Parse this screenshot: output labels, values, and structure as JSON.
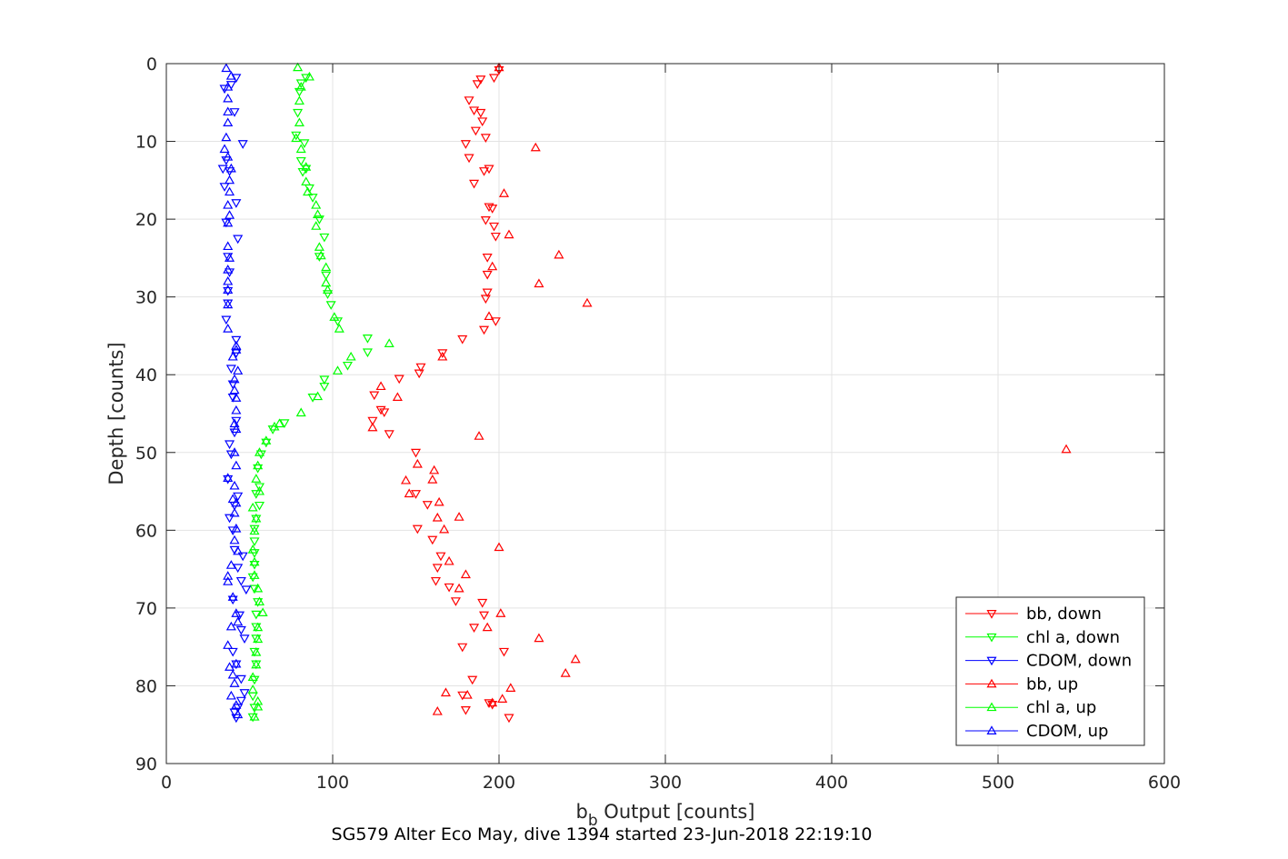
{
  "chart_data": {
    "type": "scatter",
    "title": "",
    "caption": "SG579 Alter Eco May, dive 1394 started 23-Jun-2018 22:19:10",
    "xlabel": {
      "base": "b",
      "sub": "b",
      "rest": " Output [counts]"
    },
    "ylabel": "Depth [counts]",
    "xlim": [
      0,
      600
    ],
    "ylim": [
      0,
      90
    ],
    "y_reversed": true,
    "grid": true,
    "xticks": [
      0,
      100,
      200,
      300,
      400,
      500,
      600
    ],
    "yticks": [
      0,
      10,
      20,
      30,
      40,
      50,
      60,
      70,
      80,
      90
    ],
    "legend_position": "bottom-right",
    "series": [
      {
        "name": "bb, down",
        "color": "#ff0000",
        "marker": "triangle-down",
        "points": [
          [
            200,
            0.8
          ],
          [
            197,
            1.8
          ],
          [
            189,
            2
          ],
          [
            187,
            2.6
          ],
          [
            182,
            4.7
          ],
          [
            185,
            6
          ],
          [
            189,
            6.3
          ],
          [
            190,
            7.4
          ],
          [
            186,
            8.6
          ],
          [
            192,
            9.5
          ],
          [
            180,
            10.3
          ],
          [
            182,
            12.1
          ],
          [
            194,
            13.5
          ],
          [
            191,
            13.8
          ],
          [
            185,
            15.4
          ],
          [
            194,
            18.4
          ],
          [
            196,
            18.6
          ],
          [
            192,
            20.1
          ],
          [
            197,
            20.9
          ],
          [
            198,
            22.2
          ],
          [
            193,
            24.9
          ],
          [
            193,
            27.1
          ],
          [
            193,
            29.4
          ],
          [
            192,
            30.2
          ],
          [
            198,
            33.1
          ],
          [
            191,
            34.2
          ],
          [
            178,
            35.4
          ],
          [
            166,
            37.2
          ],
          [
            153,
            39
          ],
          [
            152,
            39.8
          ],
          [
            140,
            40.5
          ],
          [
            125,
            42.6
          ],
          [
            129,
            44.5
          ],
          [
            131,
            44.8
          ],
          [
            124,
            45.9
          ],
          [
            134,
            47.6
          ],
          [
            150,
            50
          ],
          [
            150,
            55.3
          ],
          [
            157,
            56.7
          ],
          [
            151,
            59.8
          ],
          [
            160,
            61.2
          ],
          [
            165,
            63.3
          ],
          [
            163,
            64.8
          ],
          [
            162,
            66.5
          ],
          [
            170,
            67.3
          ],
          [
            174,
            69.1
          ],
          [
            190,
            69.3
          ],
          [
            191,
            70.9
          ],
          [
            185,
            72.5
          ],
          [
            203,
            75.6
          ],
          [
            178,
            75
          ],
          [
            184,
            79.2
          ],
          [
            178,
            81.2
          ],
          [
            180,
            83.1
          ],
          [
            194,
            82.2
          ],
          [
            196,
            82.4
          ],
          [
            206,
            84.1
          ]
        ]
      },
      {
        "name": "chl a, down",
        "color": "#00ff00",
        "marker": "triangle-down",
        "points": [
          [
            84,
            1.8
          ],
          [
            81,
            2.5
          ],
          [
            80,
            3.6
          ],
          [
            79,
            6.3
          ],
          [
            78,
            9.2
          ],
          [
            83,
            10.2
          ],
          [
            81,
            12.5
          ],
          [
            84,
            13.5
          ],
          [
            82,
            13.9
          ],
          [
            86,
            16
          ],
          [
            88,
            17.2
          ],
          [
            92,
            20
          ],
          [
            95,
            22.3
          ],
          [
            92,
            24.8
          ],
          [
            96,
            27.2
          ],
          [
            97,
            29.6
          ],
          [
            99,
            31
          ],
          [
            103,
            33.1
          ],
          [
            121,
            35.3
          ],
          [
            121,
            37.1
          ],
          [
            109,
            38.8
          ],
          [
            95,
            40.6
          ],
          [
            95,
            41.5
          ],
          [
            88,
            42.9
          ],
          [
            71,
            46.2
          ],
          [
            64,
            47
          ],
          [
            60,
            48.7
          ],
          [
            57,
            50.2
          ],
          [
            55,
            52
          ],
          [
            56,
            54.4
          ],
          [
            54,
            55.3
          ],
          [
            56,
            56.8
          ],
          [
            54,
            58.5
          ],
          [
            53,
            59.8
          ],
          [
            53,
            61.4
          ],
          [
            53,
            62.9
          ],
          [
            53,
            64.4
          ],
          [
            52,
            66
          ],
          [
            53,
            67.5
          ],
          [
            55,
            69.2
          ],
          [
            54,
            70.8
          ],
          [
            54,
            72.4
          ],
          [
            54,
            73.9
          ],
          [
            53,
            75.6
          ],
          [
            54,
            77.2
          ],
          [
            53,
            79.2
          ],
          [
            52,
            81.3
          ],
          [
            53,
            82.8
          ],
          [
            52,
            84
          ]
        ]
      },
      {
        "name": "CDOM, down",
        "color": "#0000ff",
        "marker": "triangle-down",
        "points": [
          [
            42,
            1.8
          ],
          [
            39,
            2.7
          ],
          [
            35,
            3.2
          ],
          [
            41,
            6.2
          ],
          [
            46,
            10.3
          ],
          [
            36,
            12.4
          ],
          [
            34,
            13.5
          ],
          [
            38,
            13.8
          ],
          [
            35,
            15.8
          ],
          [
            42,
            17.9
          ],
          [
            36,
            20.4
          ],
          [
            43,
            22.5
          ],
          [
            37,
            24.8
          ],
          [
            38,
            26.8
          ],
          [
            37,
            29.2
          ],
          [
            37,
            30.8
          ],
          [
            36,
            32.9
          ],
          [
            42,
            35.5
          ],
          [
            42,
            37.2
          ],
          [
            39,
            39.2
          ],
          [
            40,
            41.2
          ],
          [
            40,
            42.9
          ],
          [
            42,
            45.9
          ],
          [
            41,
            47.4
          ],
          [
            38,
            48.9
          ],
          [
            39,
            50.2
          ],
          [
            37,
            53.4
          ],
          [
            43,
            55.6
          ],
          [
            41,
            56.8
          ],
          [
            38,
            58.4
          ],
          [
            40,
            60
          ],
          [
            41,
            62.5
          ],
          [
            46,
            63.3
          ],
          [
            43,
            64.8
          ],
          [
            45,
            66.5
          ],
          [
            48,
            67.6
          ],
          [
            40,
            68.9
          ],
          [
            44,
            70.9
          ],
          [
            45,
            72.8
          ],
          [
            47,
            73.9
          ],
          [
            40,
            75.6
          ],
          [
            42,
            77.2
          ],
          [
            45,
            79.1
          ],
          [
            47,
            80.9
          ],
          [
            45,
            81.9
          ],
          [
            43,
            82.8
          ],
          [
            41,
            83.4
          ],
          [
            42,
            84.1
          ]
        ]
      },
      {
        "name": "bb, up",
        "color": "#ff0000",
        "marker": "triangle-up",
        "points": [
          [
            200,
            0.5
          ],
          [
            222,
            10.8
          ],
          [
            203,
            16.7
          ],
          [
            206,
            22
          ],
          [
            236,
            24.6
          ],
          [
            196,
            26.1
          ],
          [
            224,
            28.3
          ],
          [
            253,
            30.8
          ],
          [
            194,
            32.5
          ],
          [
            166,
            37.7
          ],
          [
            139,
            42.9
          ],
          [
            129,
            41.5
          ],
          [
            124,
            46.8
          ],
          [
            188,
            47.9
          ],
          [
            541,
            49.6
          ],
          [
            151,
            51.5
          ],
          [
            161,
            52.3
          ],
          [
            160,
            53.5
          ],
          [
            144,
            53.6
          ],
          [
            146,
            55.3
          ],
          [
            164,
            56.4
          ],
          [
            176,
            58.3
          ],
          [
            163,
            58.4
          ],
          [
            167,
            59.9
          ],
          [
            200,
            62.2
          ],
          [
            170,
            64
          ],
          [
            180,
            65.7
          ],
          [
            176,
            67.5
          ],
          [
            201,
            70.7
          ],
          [
            193,
            72.5
          ],
          [
            224,
            73.9
          ],
          [
            246,
            76.6
          ],
          [
            240,
            78.4
          ],
          [
            168,
            80.9
          ],
          [
            202,
            81.7
          ],
          [
            207,
            80.3
          ],
          [
            181,
            81.2
          ],
          [
            196,
            82.2
          ],
          [
            163,
            83.3
          ]
        ]
      },
      {
        "name": "chl a, up",
        "color": "#00ff00",
        "marker": "triangle-up",
        "points": [
          [
            79,
            0.5
          ],
          [
            86,
            1.7
          ],
          [
            81,
            3
          ],
          [
            80,
            4.8
          ],
          [
            80,
            7.6
          ],
          [
            78,
            9.6
          ],
          [
            81,
            11
          ],
          [
            84,
            13.3
          ],
          [
            84,
            15.2
          ],
          [
            85,
            16.5
          ],
          [
            90,
            18.2
          ],
          [
            91,
            19.4
          ],
          [
            90,
            20.9
          ],
          [
            92,
            23.6
          ],
          [
            93,
            24.7
          ],
          [
            96,
            26.2
          ],
          [
            96,
            28.2
          ],
          [
            97,
            29.1
          ],
          [
            101,
            32.6
          ],
          [
            104,
            34.1
          ],
          [
            134,
            36
          ],
          [
            111,
            37.7
          ],
          [
            103,
            39.5
          ],
          [
            91,
            42.8
          ],
          [
            81,
            44.9
          ],
          [
            68,
            46.3
          ],
          [
            65,
            46.7
          ],
          [
            60,
            48.5
          ],
          [
            56,
            50
          ],
          [
            55,
            51.7
          ],
          [
            54,
            53.4
          ],
          [
            56,
            55
          ],
          [
            52,
            57.1
          ],
          [
            54,
            58.5
          ],
          [
            53,
            60.1
          ],
          [
            52,
            62.5
          ],
          [
            53,
            64.1
          ],
          [
            53,
            65.8
          ],
          [
            55,
            67.5
          ],
          [
            56,
            69.2
          ],
          [
            58,
            70.6
          ],
          [
            55,
            72.5
          ],
          [
            55,
            74
          ],
          [
            54,
            75.7
          ],
          [
            54,
            77.3
          ],
          [
            52,
            78.9
          ],
          [
            52,
            80.5
          ],
          [
            55,
            82
          ],
          [
            55,
            82.7
          ],
          [
            53,
            84
          ]
        ]
      },
      {
        "name": "CDOM, up",
        "color": "#0000ff",
        "marker": "triangle-up",
        "points": [
          [
            36,
            0.6
          ],
          [
            39,
            1.6
          ],
          [
            37,
            3
          ],
          [
            37,
            4.5
          ],
          [
            37,
            6.2
          ],
          [
            37,
            7.6
          ],
          [
            36,
            9.5
          ],
          [
            35,
            11
          ],
          [
            37,
            12
          ],
          [
            39,
            13.5
          ],
          [
            38,
            15
          ],
          [
            38,
            16.5
          ],
          [
            37,
            18.2
          ],
          [
            38,
            19.5
          ],
          [
            37,
            20.5
          ],
          [
            37,
            23.5
          ],
          [
            38,
            25
          ],
          [
            37,
            26.5
          ],
          [
            37,
            28
          ],
          [
            37,
            29.1
          ],
          [
            37,
            31
          ],
          [
            37,
            34.1
          ],
          [
            42,
            36.3
          ],
          [
            42,
            36.8
          ],
          [
            40,
            37.7
          ],
          [
            43,
            39.5
          ],
          [
            41,
            40.6
          ],
          [
            41,
            42
          ],
          [
            42,
            43
          ],
          [
            42,
            44.6
          ],
          [
            41,
            46.3
          ],
          [
            42,
            47
          ],
          [
            41,
            50
          ],
          [
            42,
            51.7
          ],
          [
            37,
            53.3
          ],
          [
            41,
            54.3
          ],
          [
            40,
            56
          ],
          [
            42,
            56.5
          ],
          [
            41,
            57.8
          ],
          [
            42,
            59.8
          ],
          [
            41,
            61.3
          ],
          [
            43,
            62.7
          ],
          [
            39,
            64.5
          ],
          [
            37,
            65.9
          ],
          [
            37,
            66.6
          ],
          [
            40,
            68.6
          ],
          [
            42,
            70.7
          ],
          [
            43,
            71.8
          ],
          [
            39,
            72.4
          ],
          [
            37,
            74.8
          ],
          [
            42,
            77.2
          ],
          [
            38,
            77.6
          ],
          [
            40,
            78.6
          ],
          [
            41,
            79.7
          ],
          [
            39,
            81.3
          ],
          [
            42,
            82.5
          ],
          [
            43,
            83.7
          ]
        ]
      }
    ]
  }
}
